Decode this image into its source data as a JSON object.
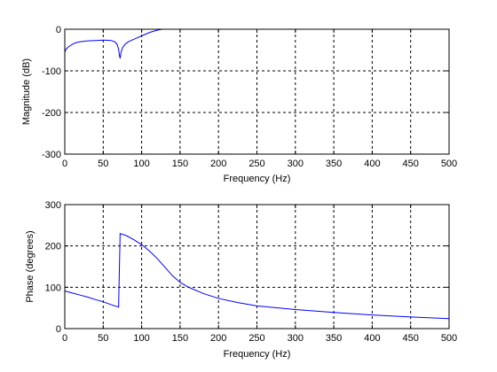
{
  "chart_data": [
    {
      "type": "line",
      "xlabel": "Frequency (Hz)",
      "ylabel": "Magnitude (dB)",
      "xlim": [
        0,
        500
      ],
      "ylim": [
        -300,
        0
      ],
      "xticks": [
        0,
        50,
        100,
        150,
        200,
        250,
        300,
        350,
        400,
        450,
        500
      ],
      "yticks": [
        0,
        -100,
        -200,
        -300
      ],
      "xtick_labels": [
        "0",
        "50",
        "100",
        "150",
        "200",
        "250",
        "300",
        "350",
        "400",
        "450",
        "500"
      ],
      "ytick_labels": [
        "0",
        "-100",
        "-200",
        "-300"
      ],
      "grid": true,
      "color": "#0000ff",
      "series": [
        {
          "x": [
            0,
            2,
            5,
            10,
            15,
            20,
            25,
            30,
            40,
            50,
            60,
            65,
            68,
            70,
            71,
            72,
            73,
            75,
            78,
            82,
            86,
            90,
            95,
            100,
            105,
            110,
            115,
            120,
            125,
            128,
            135,
            150,
            200,
            300,
            400,
            500
          ],
          "y": [
            -55,
            -47,
            -42,
            -36,
            -32,
            -30,
            -29,
            -28,
            -27,
            -26,
            -27,
            -30,
            -36,
            -48,
            -62,
            -70,
            -57,
            -45,
            -37,
            -31,
            -27,
            -24,
            -20,
            -16,
            -12,
            -8,
            -5,
            -2.5,
            -0.5,
            0,
            0,
            0,
            0,
            0,
            0,
            0
          ]
        }
      ]
    },
    {
      "type": "line",
      "xlabel": "Frequency (Hz)",
      "ylabel": "Phase (degrees)",
      "xlim": [
        0,
        500
      ],
      "ylim": [
        0,
        300
      ],
      "xticks": [
        0,
        50,
        100,
        150,
        200,
        250,
        300,
        350,
        400,
        450,
        500
      ],
      "yticks": [
        0,
        100,
        200,
        300
      ],
      "xtick_labels": [
        "0",
        "50",
        "100",
        "150",
        "200",
        "250",
        "300",
        "350",
        "400",
        "450",
        "500"
      ],
      "ytick_labels": [
        "0",
        "100",
        "200",
        "300"
      ],
      "grid": true,
      "color": "#0000ff",
      "series": [
        {
          "x": [
            0,
            10,
            20,
            30,
            40,
            50,
            60,
            70,
            71,
            72,
            80,
            90,
            100,
            110,
            120,
            130,
            140,
            150,
            160,
            180,
            200,
            225,
            250,
            300,
            350,
            400,
            450,
            500
          ],
          "y": [
            91,
            86,
            81,
            76,
            70,
            65,
            58,
            52,
            140,
            230,
            225,
            215,
            203,
            188,
            170,
            149,
            128,
            112,
            101,
            85,
            73,
            63,
            55,
            46,
            39,
            33,
            28,
            24
          ]
        }
      ]
    }
  ]
}
